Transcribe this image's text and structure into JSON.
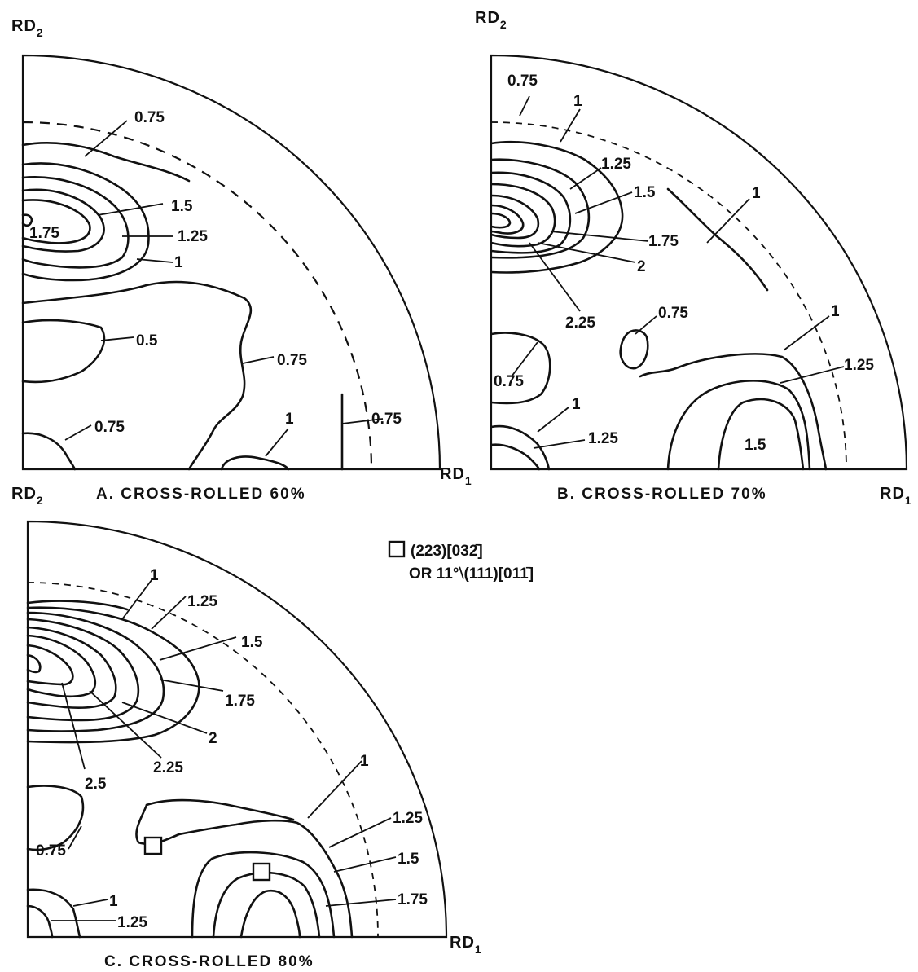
{
  "panels": {
    "a": {
      "axis_top": "RD",
      "axis_top_sub": "2",
      "axis_right": "RD",
      "axis_right_sub": "1",
      "caption": "A. CROSS-ROLLED 60%",
      "labels": [
        "0.75",
        "1.5",
        "1.75",
        "1.25",
        "1",
        "0.5",
        "0.75",
        "0.75",
        "1",
        "0.75"
      ]
    },
    "b": {
      "axis_top": "RD",
      "axis_top_sub": "2",
      "axis_right": "RD",
      "axis_right_sub": "1",
      "caption": "B. CROSS-ROLLED 70%",
      "labels": [
        "0.75",
        "1",
        "1.25",
        "1.5",
        "1",
        "1.75",
        "2",
        "2.25",
        "0.75",
        "0.75",
        "1",
        "1.25",
        "1",
        "1.25",
        "1.5"
      ]
    },
    "c": {
      "axis_top": "RD",
      "axis_top_sub": "2",
      "axis_right": "RD",
      "axis_right_sub": "1",
      "caption": "C. CROSS-ROLLED 80%",
      "labels": [
        "1",
        "1.25",
        "1.5",
        "1.75",
        "2",
        "2.25",
        "2.5",
        "1",
        "1.25",
        "1.5",
        "1.75",
        "0.75",
        "1",
        "1.25"
      ]
    }
  },
  "legend": {
    "line1": "(223)[032̄]",
    "line2": "OR  11°⧵(111)[011̄]"
  }
}
